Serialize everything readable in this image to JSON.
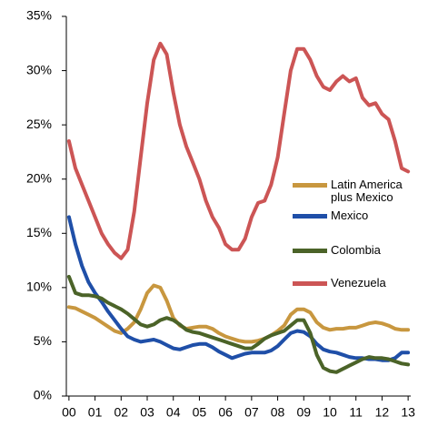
{
  "chart_data": {
    "type": "line",
    "x": [
      0,
      0.25,
      0.5,
      0.75,
      1,
      1.25,
      1.5,
      1.75,
      2,
      2.25,
      2.5,
      2.75,
      3,
      3.25,
      3.5,
      3.75,
      4,
      4.25,
      4.5,
      4.75,
      5,
      5.25,
      5.5,
      5.75,
      6,
      6.25,
      6.5,
      6.75,
      7,
      7.25,
      7.5,
      7.75,
      8,
      8.25,
      8.5,
      8.75,
      9,
      9.25,
      9.5,
      9.75,
      10,
      10.25,
      10.5,
      10.75,
      11,
      11.25,
      11.5,
      11.75,
      12,
      12.25,
      12.5,
      12.75,
      13
    ],
    "series": [
      {
        "name": "Latin America plus Mexico",
        "color": "#c8973f",
        "values": [
          8.2,
          8.1,
          7.8,
          7.5,
          7.2,
          6.8,
          6.4,
          6,
          5.8,
          6.2,
          6.8,
          8,
          9.5,
          10.2,
          10,
          8.8,
          7.2,
          6.5,
          6.2,
          6.3,
          6.4,
          6.4,
          6.2,
          5.8,
          5.5,
          5.3,
          5.1,
          5,
          5,
          5.1,
          5.3,
          5.6,
          6,
          6.5,
          7.5,
          8,
          8,
          7.7,
          6.8,
          6.3,
          6.1,
          6.2,
          6.2,
          6.3,
          6.3,
          6.5,
          6.7,
          6.8,
          6.7,
          6.5,
          6.2,
          6.1,
          6.1
        ]
      },
      {
        "name": "Mexico",
        "color": "#1f4fa8",
        "values": [
          16.5,
          14,
          12,
          10.5,
          9.5,
          8.7,
          7.8,
          7,
          6.2,
          5.5,
          5.2,
          5,
          5.1,
          5.2,
          5,
          4.7,
          4.4,
          4.3,
          4.5,
          4.7,
          4.8,
          4.8,
          4.5,
          4.1,
          3.8,
          3.5,
          3.7,
          3.9,
          4,
          4,
          4,
          4.2,
          4.6,
          5.2,
          5.8,
          6,
          5.9,
          5.5,
          4.8,
          4.3,
          4.1,
          4,
          3.8,
          3.6,
          3.5,
          3.5,
          3.4,
          3.4,
          3.3,
          3.3,
          3.5,
          4,
          4
        ]
      },
      {
        "name": "Colombia",
        "color": "#4b6328",
        "values": [
          11,
          9.5,
          9.3,
          9.3,
          9.2,
          9,
          8.6,
          8.3,
          8,
          7.6,
          7.1,
          6.6,
          6.4,
          6.6,
          7,
          7.2,
          7,
          6.6,
          6.1,
          5.9,
          5.8,
          5.6,
          5.4,
          5.2,
          5,
          4.8,
          4.6,
          4.4,
          4.4,
          4.8,
          5.3,
          5.6,
          5.8,
          6,
          6.5,
          7,
          7,
          5.8,
          3.8,
          2.6,
          2.3,
          2.2,
          2.5,
          2.8,
          3.1,
          3.4,
          3.6,
          3.5,
          3.5,
          3.4,
          3.2,
          3,
          2.9
        ]
      },
      {
        "name": "Venezuela",
        "color": "#cc5555",
        "values": [
          23.5,
          21,
          19.5,
          18,
          16.5,
          15,
          14,
          13.2,
          12.7,
          13.5,
          17,
          22,
          27,
          31,
          32.5,
          31.5,
          28,
          25,
          23,
          21.5,
          20,
          18,
          16.5,
          15.5,
          14,
          13.5,
          13.5,
          14.5,
          16.5,
          17.8,
          18,
          19.5,
          22,
          26,
          30,
          32,
          32,
          31,
          29.5,
          28.5,
          28.2,
          29,
          29.5,
          29,
          29.3,
          27.5,
          26.8,
          27,
          26,
          25.5,
          23.5,
          21,
          20.7
        ]
      }
    ],
    "xlim": [
      -0.1,
      13.1
    ],
    "xticks": [
      {
        "value": 0,
        "label": "00"
      },
      {
        "value": 1,
        "label": "01"
      },
      {
        "value": 2,
        "label": "02"
      },
      {
        "value": 3,
        "label": "03"
      },
      {
        "value": 4,
        "label": "04"
      },
      {
        "value": 5,
        "label": "05"
      },
      {
        "value": 6,
        "label": "06"
      },
      {
        "value": 7,
        "label": "07"
      },
      {
        "value": 8,
        "label": "08"
      },
      {
        "value": 9,
        "label": "09"
      },
      {
        "value": 10,
        "label": "10"
      },
      {
        "value": 11,
        "label": "11"
      },
      {
        "value": 12,
        "label": "12"
      },
      {
        "value": 13,
        "label": "13"
      }
    ],
    "ylim": [
      0,
      35
    ],
    "yticks": [
      {
        "value": 0,
        "label": "0%"
      },
      {
        "value": 5,
        "label": "5%"
      },
      {
        "value": 10,
        "label": "10%"
      },
      {
        "value": 15,
        "label": "15%"
      },
      {
        "value": 20,
        "label": "20%"
      },
      {
        "value": 25,
        "label": "25%"
      },
      {
        "value": 30,
        "label": "30%"
      },
      {
        "value": 35,
        "label": "35%"
      }
    ],
    "grid": false
  }
}
